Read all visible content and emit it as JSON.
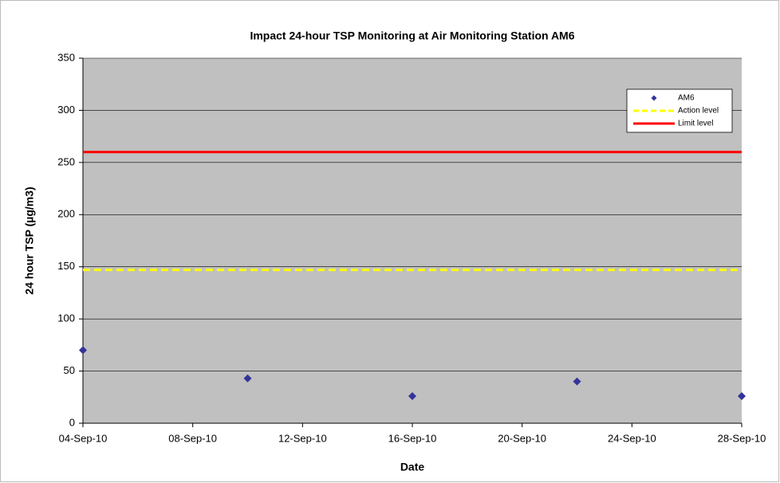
{
  "chart_data": {
    "type": "scatter",
    "title": "Impact 24-hour TSP Monitoring at Air Monitoring Station AM6",
    "x_label": "Date",
    "y_label": "24 hour TSP (µg/m3)",
    "series": [
      {
        "name": "AM6",
        "color": "#333399",
        "x": [
          "04-Sep-10",
          "10-Sep-10",
          "16-Sep-10",
          "22-Sep-10",
          "28-Sep-10"
        ],
        "values": [
          70,
          43,
          26,
          40,
          26
        ]
      }
    ],
    "reference_lines": [
      {
        "name": "Action level",
        "value": 147,
        "color": "#ffff00",
        "dashed": true
      },
      {
        "name": "Limit level",
        "value": 260,
        "color": "#ff0000",
        "dashed": false
      }
    ],
    "xlim": [
      "04-Sep-10",
      "28-Sep-10"
    ],
    "xticks": [
      "04-Sep-10",
      "08-Sep-10",
      "12-Sep-10",
      "16-Sep-10",
      "20-Sep-10",
      "24-Sep-10",
      "28-Sep-10"
    ],
    "ylim": [
      0,
      350
    ],
    "yticks": [
      0,
      50,
      100,
      150,
      200,
      250,
      300,
      350
    ],
    "grid": true,
    "legend": "upper right"
  }
}
